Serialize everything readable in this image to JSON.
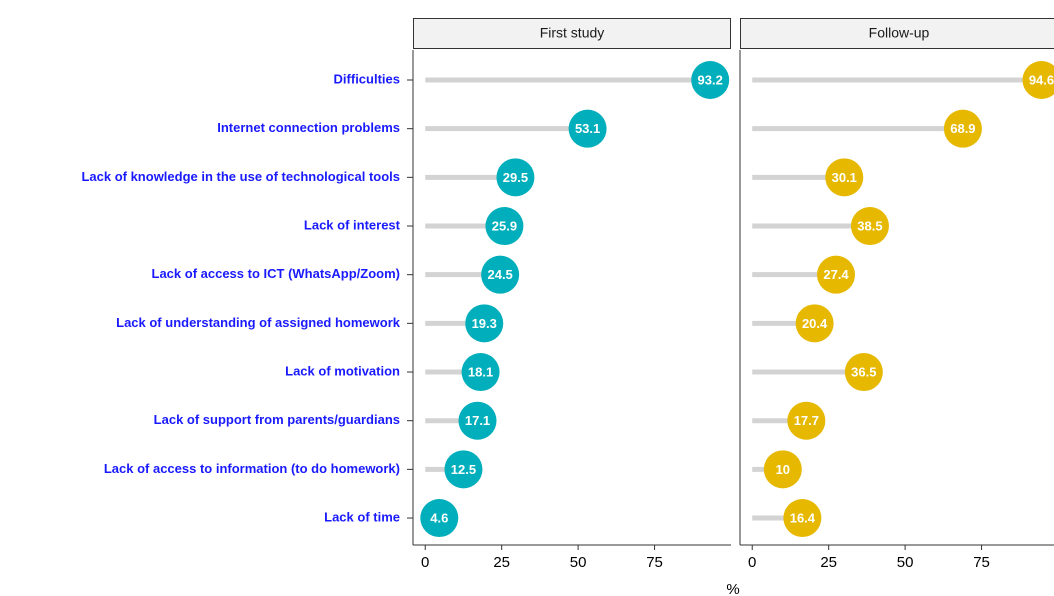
{
  "chart_data": {
    "type": "lollipop",
    "categories": [
      "Difficulties",
      "Internet connection problems",
      "Lack of knowledge in the use of technological tools",
      "Lack of interest",
      "Lack of access to ICT (WhatsApp/Zoom)",
      "Lack of understanding of assigned homework",
      "Lack of motivation",
      "Lack of support from parents/guardians",
      "Lack of access to information (to do homework)",
      "Lack of time"
    ],
    "series": [
      {
        "name": "First study",
        "color": "#00AFBB",
        "values": [
          93.2,
          53.1,
          29.5,
          25.9,
          24.5,
          19.3,
          18.1,
          17.1,
          12.5,
          4.6
        ]
      },
      {
        "name": "Follow-up",
        "color": "#E7B800",
        "values": [
          94.6,
          68.9,
          30.1,
          38.5,
          27.4,
          20.4,
          36.5,
          17.7,
          10,
          16.4
        ]
      }
    ],
    "xlim": [
      -4,
      100
    ],
    "xticks": [
      0,
      25,
      50,
      75
    ],
    "xlabel": "%"
  }
}
